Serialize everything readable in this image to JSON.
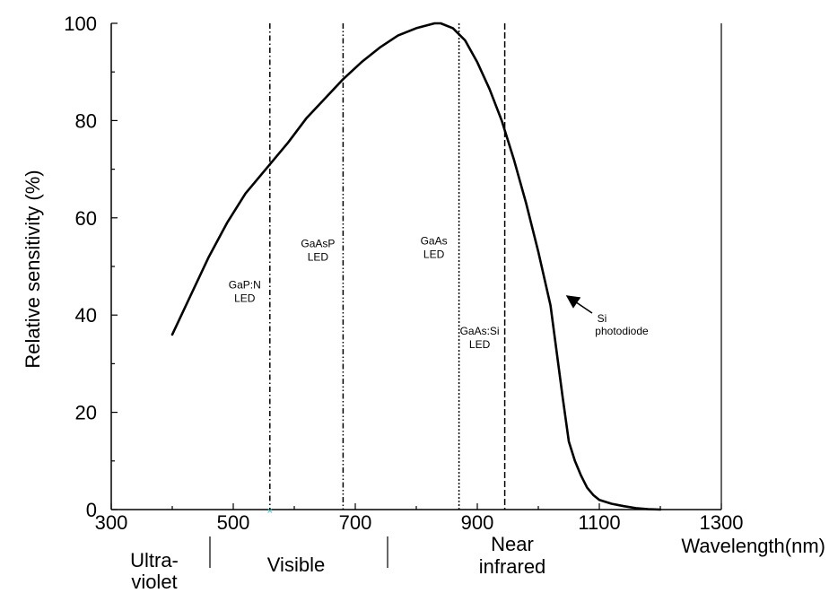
{
  "chart_data": {
    "type": "line",
    "xlabel": "Wavelength(nm)",
    "ylabel": "Relative sensitivity (%)",
    "xlim": [
      300,
      1300
    ],
    "ylim": [
      0,
      100
    ],
    "xticks": [
      "300",
      "500",
      "700",
      "900",
      "1100",
      "1300"
    ],
    "yticks": [
      "0",
      "20",
      "40",
      "60",
      "80",
      "100"
    ],
    "grid": false,
    "series": [
      {
        "name": "",
        "x": [
          400,
          430,
          460,
          490,
          520,
          550,
          560,
          590,
          620,
          650,
          680,
          710,
          740,
          770,
          800,
          830,
          840,
          860,
          880,
          900,
          920,
          940,
          960,
          980,
          1000,
          1020,
          1040,
          1050,
          1060,
          1070,
          1080,
          1090,
          1100,
          1120,
          1140,
          1160,
          1180,
          1200
        ],
        "y": [
          36,
          44,
          52,
          59,
          65,
          69.5,
          71,
          75.5,
          80.5,
          84.5,
          88.5,
          92,
          95,
          97.5,
          99,
          100,
          100,
          99,
          96.5,
          92,
          86.5,
          80,
          72,
          63,
          53,
          42,
          23,
          14,
          10,
          7,
          4.5,
          3,
          2,
          1.2,
          0.7,
          0.3,
          0.1,
          0
        ]
      }
    ],
    "vlines": [
      {
        "x": 560,
        "style": "dash-dot",
        "label": [
          "GaP:N",
          "LED"
        ],
        "label_y": 45.5
      },
      {
        "x": 680,
        "style": "dash-dot-dot",
        "label": [
          "GaAsP",
          "LED"
        ],
        "label_y": 54
      },
      {
        "x": 870,
        "style": "dotted",
        "label": [
          "GaAs",
          "LED"
        ],
        "label_y": 54.5
      },
      {
        "x": 945,
        "style": "dashed",
        "label": [
          "GaAs:Si",
          "LED"
        ],
        "label_y": 36
      }
    ],
    "annotation": {
      "lines": [
        "Si",
        "photodiode"
      ],
      "x": 1110,
      "y": 39.5,
      "arrow_to": [
        1040,
        43.5
      ]
    },
    "regions": [
      {
        "label": [
          "Ultra-",
          "violet"
        ]
      },
      {
        "label": [
          "Visible"
        ]
      },
      {
        "label": [
          "Near",
          "infrared"
        ]
      }
    ]
  }
}
